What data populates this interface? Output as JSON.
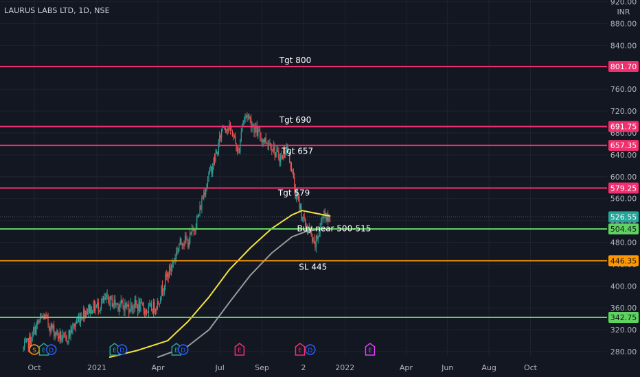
{
  "header": {
    "title": "LAURUS LABS LTD, 1D, NSE"
  },
  "chart_data": {
    "type": "candlestick",
    "currency": "INR",
    "ylim": [
      270,
      925
    ],
    "y_ticks": [
      280,
      320,
      360,
      400,
      440,
      480,
      520,
      560,
      600,
      640,
      680,
      720,
      760,
      800,
      840,
      880,
      920
    ],
    "y_tick_labels": [
      "280.00",
      "320.00",
      "360.00",
      "400.00",
      "440.00",
      "480.00",
      "520.00",
      "560.00",
      "600.00",
      "640.00",
      "680.00",
      "720.00",
      "760.00",
      "800.00",
      "840.00",
      "880.00",
      "920.00"
    ],
    "x_start": "2020-09-15",
    "x_end": "2022-11-10",
    "x_ticks": [
      {
        "date": "2020-10-01",
        "label": "Oct"
      },
      {
        "date": "2021-01-01",
        "label": "2021"
      },
      {
        "date": "2021-04-01",
        "label": "Apr"
      },
      {
        "date": "2021-07-01",
        "label": "Jul"
      },
      {
        "date": "2021-09-01",
        "label": "Sep"
      },
      {
        "date": "2021-11-01",
        "label": "2"
      },
      {
        "date": "2022-01-01",
        "label": "2022"
      },
      {
        "date": "2022-04-01",
        "label": "Apr"
      },
      {
        "date": "2022-06-01",
        "label": "Jun"
      },
      {
        "date": "2022-08-01",
        "label": "Aug"
      },
      {
        "date": "2022-10-01",
        "label": "Oct"
      }
    ],
    "price_path": [
      [
        "2020-09-15",
        285
      ],
      [
        "2020-09-25",
        300
      ],
      [
        "2020-10-05",
        330
      ],
      [
        "2020-10-15",
        345
      ],
      [
        "2020-10-25",
        325
      ],
      [
        "2020-11-05",
        310
      ],
      [
        "2020-11-15",
        300
      ],
      [
        "2020-11-25",
        320
      ],
      [
        "2020-12-05",
        340
      ],
      [
        "2020-12-15",
        355
      ],
      [
        "2020-12-25",
        360
      ],
      [
        "2021-01-05",
        365
      ],
      [
        "2021-01-15",
        375
      ],
      [
        "2021-01-25",
        370
      ],
      [
        "2021-02-05",
        365
      ],
      [
        "2021-02-15",
        362
      ],
      [
        "2021-02-25",
        365
      ],
      [
        "2021-03-05",
        362
      ],
      [
        "2021-03-15",
        355
      ],
      [
        "2021-03-25",
        360
      ],
      [
        "2021-04-01",
        370
      ],
      [
        "2021-04-08",
        400
      ],
      [
        "2021-04-15",
        420
      ],
      [
        "2021-04-22",
        440
      ],
      [
        "2021-04-30",
        470
      ],
      [
        "2021-05-07",
        485
      ],
      [
        "2021-05-15",
        480
      ],
      [
        "2021-05-22",
        500
      ],
      [
        "2021-05-31",
        530
      ],
      [
        "2021-06-07",
        570
      ],
      [
        "2021-06-14",
        600
      ],
      [
        "2021-06-20",
        620
      ],
      [
        "2021-06-28",
        650
      ],
      [
        "2021-07-05",
        695
      ],
      [
        "2021-07-12",
        690
      ],
      [
        "2021-07-20",
        680
      ],
      [
        "2021-07-28",
        640
      ],
      [
        "2021-08-03",
        700
      ],
      [
        "2021-08-10",
        715
      ],
      [
        "2021-08-18",
        695
      ],
      [
        "2021-08-25",
        680
      ],
      [
        "2021-09-01",
        670
      ],
      [
        "2021-09-08",
        665
      ],
      [
        "2021-09-15",
        660
      ],
      [
        "2021-09-22",
        640
      ],
      [
        "2021-09-30",
        635
      ],
      [
        "2021-10-07",
        655
      ],
      [
        "2021-10-14",
        620
      ],
      [
        "2021-10-20",
        570
      ],
      [
        "2021-10-27",
        545
      ],
      [
        "2021-11-03",
        510
      ],
      [
        "2021-11-10",
        500
      ],
      [
        "2021-11-17",
        470
      ],
      [
        "2021-11-24",
        500
      ],
      [
        "2021-12-01",
        540
      ],
      [
        "2021-12-06",
        520
      ],
      [
        "2021-12-10",
        526
      ]
    ],
    "moving_averages": [
      {
        "color": "#f5e43c",
        "points": [
          [
            "2021-01-20",
            270
          ],
          [
            "2021-03-01",
            282
          ],
          [
            "2021-04-15",
            300
          ],
          [
            "2021-05-15",
            335
          ],
          [
            "2021-06-15",
            380
          ],
          [
            "2021-07-15",
            430
          ],
          [
            "2021-08-15",
            470
          ],
          [
            "2021-09-15",
            505
          ],
          [
            "2021-10-15",
            530
          ],
          [
            "2021-10-30",
            538
          ],
          [
            "2021-11-15",
            534
          ],
          [
            "2021-12-10",
            528
          ]
        ]
      },
      {
        "color": "#9b9b9b",
        "points": [
          [
            "2021-04-01",
            270
          ],
          [
            "2021-05-15",
            290
          ],
          [
            "2021-06-15",
            320
          ],
          [
            "2021-07-15",
            370
          ],
          [
            "2021-08-15",
            420
          ],
          [
            "2021-09-15",
            460
          ],
          [
            "2021-10-15",
            490
          ],
          [
            "2021-11-05",
            500
          ],
          [
            "2021-11-25",
            504
          ],
          [
            "2021-12-10",
            505
          ]
        ]
      }
    ],
    "current_price": {
      "value": 526.55,
      "label": "526.55",
      "color": "#26a69a"
    },
    "levels": [
      {
        "value": 801.7,
        "label": "801.70",
        "color": "#f0306e",
        "annotation": "Tgt 800",
        "annotation_date": "2021-10-20",
        "annotation_value": 808
      },
      {
        "value": 691.75,
        "label": "691.75",
        "color": "#f0306e",
        "annotation": "Tgt 690",
        "annotation_date": "2021-10-20",
        "annotation_value": 699
      },
      {
        "value": 657.35,
        "label": "657.35",
        "color": "#f0306e",
        "annotation": "Tgt 657",
        "annotation_date": "2021-10-23",
        "annotation_value": 642
      },
      {
        "value": 579.25,
        "label": "579.25",
        "color": "#f0306e",
        "annotation": "Tgt 579",
        "annotation_date": "2021-10-18",
        "annotation_value": 565
      },
      {
        "value": 504.45,
        "label": "504.45",
        "color": "#5fd35f",
        "annotation": "Buy near 500-515",
        "annotation_date": "2021-12-16",
        "annotation_value": 500
      },
      {
        "value": 446.35,
        "label": "446.35",
        "color": "#ff9800",
        "annotation": "SL 445",
        "annotation_date": "2021-11-15",
        "annotation_value": 430
      },
      {
        "value": 342.75,
        "label": "342.75",
        "color": "#5fd35f",
        "annotation": "",
        "annotation_date": "",
        "annotation_value": 0
      }
    ],
    "event_markers": [
      {
        "date": "2020-10-01",
        "letter": "S",
        "kind": "circle",
        "color": "#ff9800"
      },
      {
        "date": "2020-10-15",
        "letter": "E",
        "kind": "flag",
        "color": "#26a69a"
      },
      {
        "date": "2020-10-26",
        "letter": "D",
        "kind": "circle",
        "color": "#2962ff"
      },
      {
        "date": "2021-01-27",
        "letter": "E",
        "kind": "flag",
        "color": "#26a69a"
      },
      {
        "date": "2021-02-07",
        "letter": "D",
        "kind": "circle",
        "color": "#2962ff"
      },
      {
        "date": "2021-04-28",
        "letter": "E",
        "kind": "flag",
        "color": "#26a69a"
      },
      {
        "date": "2021-05-08",
        "letter": "D",
        "kind": "circle",
        "color": "#2962ff"
      },
      {
        "date": "2021-07-30",
        "letter": "E",
        "kind": "flag",
        "color": "#f0306e"
      },
      {
        "date": "2021-10-27",
        "letter": "E",
        "kind": "flag",
        "color": "#f0306e"
      },
      {
        "date": "2021-11-11",
        "letter": "D",
        "kind": "circle",
        "color": "#2962ff"
      },
      {
        "date": "2022-02-07",
        "letter": "E",
        "kind": "flag",
        "color": "#e040fb"
      }
    ]
  }
}
